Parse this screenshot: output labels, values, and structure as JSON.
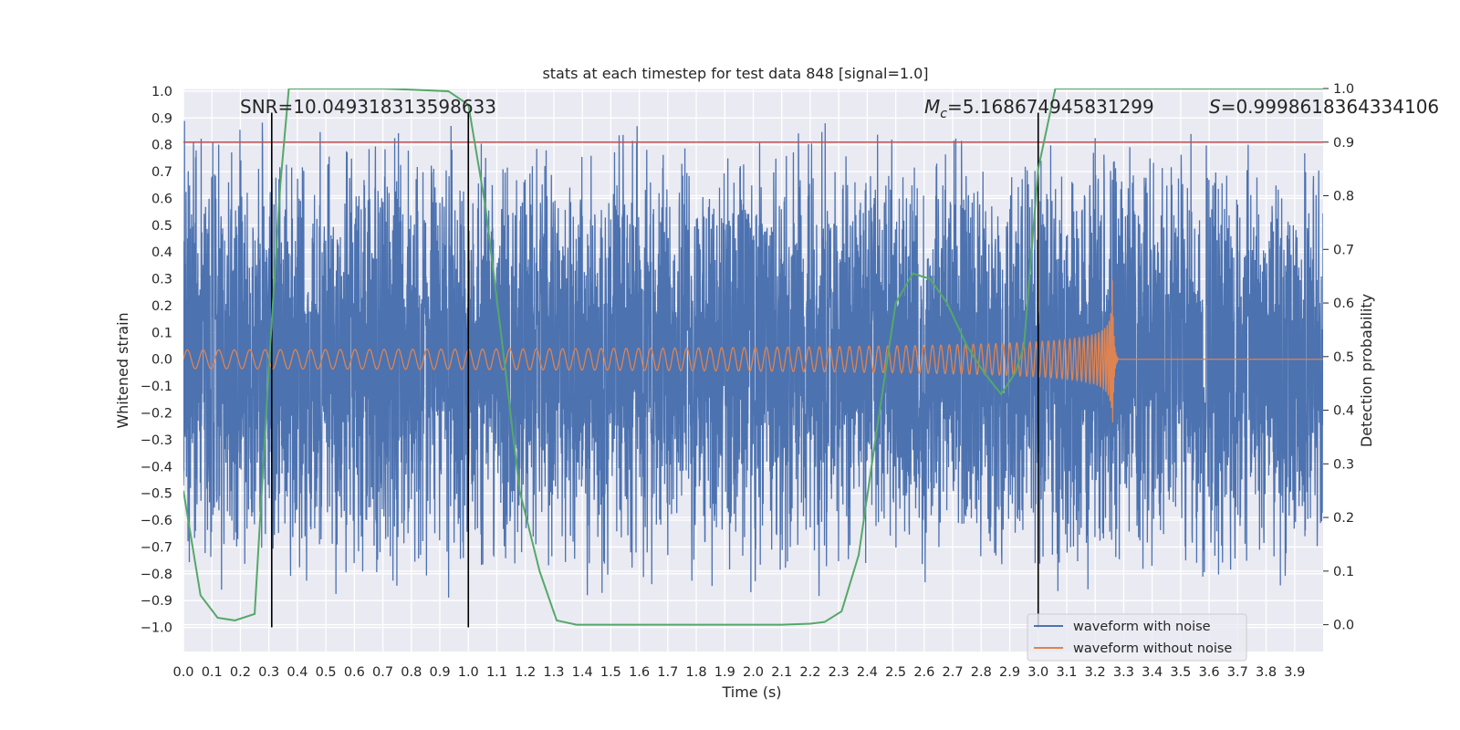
{
  "chart_data": {
    "type": "line",
    "title": "stats at each timestep for test data 848 [signal=1.0]",
    "xlabel": "Time (s)",
    "ylabel_left": "Whitened strain",
    "ylabel_right": "Detection probability",
    "xlim": [
      0.0,
      4.0
    ],
    "ylim_left": [
      -1.09,
      1.01
    ],
    "ylim_right": [
      -0.05,
      1.0
    ],
    "grid": true,
    "x_ticks": [
      "0.0",
      "0.1",
      "0.2",
      "0.3",
      "0.4",
      "0.5",
      "0.6",
      "0.7",
      "0.8",
      "0.9",
      "1.0",
      "1.1",
      "1.2",
      "1.3",
      "1.4",
      "1.5",
      "1.6",
      "1.7",
      "1.8",
      "1.9",
      "2.0",
      "2.1",
      "2.2",
      "2.3",
      "2.4",
      "2.5",
      "2.6",
      "2.7",
      "2.8",
      "2.9",
      "3.0",
      "3.1",
      "3.2",
      "3.3",
      "3.4",
      "3.5",
      "3.6",
      "3.7",
      "3.8",
      "3.9"
    ],
    "y_ticks_left": [
      "−1.0",
      "−0.9",
      "−0.8",
      "−0.7",
      "−0.6",
      "−0.5",
      "−0.4",
      "−0.3",
      "−0.2",
      "−0.1",
      "0.0",
      "0.1",
      "0.2",
      "0.3",
      "0.4",
      "0.5",
      "0.6",
      "0.7",
      "0.8",
      "0.9",
      "1.0"
    ],
    "y_ticks_right": [
      "0.0",
      "0.1",
      "0.2",
      "0.3",
      "0.4",
      "0.5",
      "0.6",
      "0.7",
      "0.8",
      "0.9",
      "1.0"
    ],
    "annotations": {
      "snr": "SNR=10.049318313598633",
      "mc_symbol": "M",
      "mc_sub": "c",
      "mc_value": "=5.168674945831299",
      "s_symbol": "S",
      "s_value": "=0.9998618364334106"
    },
    "threshold_line": {
      "axis": "right",
      "y": 0.9,
      "color": "#c44e52"
    },
    "vertical_lines": {
      "x": [
        0.31,
        1.0,
        3.0
      ],
      "y_range": [
        -1.0,
        0.92
      ],
      "color": "#000000"
    },
    "legend": {
      "location": "lower-right",
      "entries": [
        {
          "label": "waveform with noise",
          "color": "#4c72b0"
        },
        {
          "label": "waveform without noise",
          "color": "#dd8452"
        }
      ]
    },
    "series": [
      {
        "name": "waveform with noise",
        "axis": "left",
        "color": "#4c72b0",
        "style": "dense noisy oscillation, amplitude up to about ±0.9",
        "x_range": [
          0.0,
          4.0
        ],
        "envelope_max": 0.92,
        "envelope_min": -0.97
      },
      {
        "name": "waveform without noise",
        "axis": "left",
        "color": "#dd8452",
        "style": "chirp: amplitude and frequency increase until merger at about 3.26 s, then flat zero",
        "x_range": [
          0.0,
          4.0
        ],
        "amplitude_start": 0.035,
        "amplitude_peak": 0.31,
        "merger_time": 3.26
      },
      {
        "axis": "right",
        "color": "#55a868",
        "x": [
          0.0,
          0.06,
          0.12,
          0.18,
          0.25,
          0.3,
          0.34,
          0.37,
          0.5,
          0.7,
          0.93,
          1.0,
          1.06,
          1.12,
          1.18,
          1.25,
          1.31,
          1.38,
          1.6,
          1.9,
          2.1,
          2.2,
          2.25,
          2.31,
          2.37,
          2.43,
          2.5,
          2.56,
          2.62,
          2.68,
          2.75,
          2.81,
          2.87,
          2.92,
          2.95,
          3.0,
          3.06,
          3.1,
          3.3,
          3.6,
          3.9,
          4.0
        ],
        "y": [
          0.25,
          0.055,
          0.013,
          0.008,
          0.02,
          0.48,
          0.82,
          1.0,
          1.0,
          1.0,
          0.995,
          0.97,
          0.78,
          0.52,
          0.25,
          0.1,
          0.008,
          0.0,
          0.0,
          0.0,
          0.0,
          0.002,
          0.005,
          0.025,
          0.13,
          0.35,
          0.6,
          0.655,
          0.645,
          0.6,
          0.52,
          0.47,
          0.43,
          0.47,
          0.52,
          0.85,
          1.0,
          1.0,
          1.0,
          1.0,
          1.0,
          1.0
        ]
      }
    ]
  }
}
